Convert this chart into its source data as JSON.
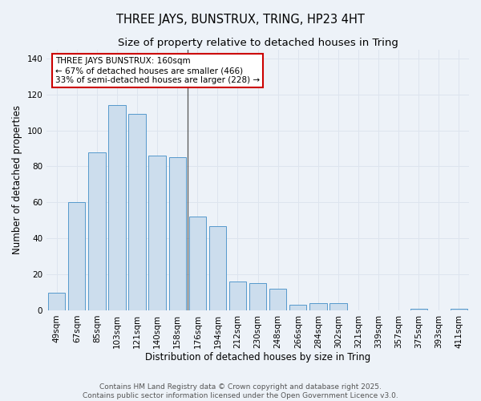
{
  "title": "THREE JAYS, BUNSTRUX, TRING, HP23 4HT",
  "subtitle": "Size of property relative to detached houses in Tring",
  "xlabel": "Distribution of detached houses by size in Tring",
  "ylabel": "Number of detached properties",
  "categories": [
    "49sqm",
    "67sqm",
    "85sqm",
    "103sqm",
    "121sqm",
    "140sqm",
    "158sqm",
    "176sqm",
    "194sqm",
    "212sqm",
    "230sqm",
    "248sqm",
    "266sqm",
    "284sqm",
    "302sqm",
    "321sqm",
    "339sqm",
    "357sqm",
    "375sqm",
    "393sqm",
    "411sqm"
  ],
  "values": [
    10,
    60,
    88,
    114,
    109,
    86,
    85,
    52,
    47,
    16,
    15,
    12,
    3,
    4,
    4,
    0,
    0,
    0,
    1,
    0,
    1
  ],
  "bar_color": "#ccdded",
  "bar_edge_color": "#5599cc",
  "marker_index": 6,
  "marker_line_color": "#555555",
  "annotation_text": "THREE JAYS BUNSTRUX: 160sqm\n← 67% of detached houses are smaller (466)\n33% of semi-detached houses are larger (228) →",
  "annotation_box_facecolor": "#ffffff",
  "annotation_box_edgecolor": "#cc0000",
  "ylim": [
    0,
    145
  ],
  "yticks": [
    0,
    20,
    40,
    60,
    80,
    100,
    120,
    140
  ],
  "grid_color": "#dde4ee",
  "background_color": "#edf2f8",
  "footer_line1": "Contains HM Land Registry data © Crown copyright and database right 2025.",
  "footer_line2": "Contains public sector information licensed under the Open Government Licence v3.0.",
  "title_fontsize": 10.5,
  "subtitle_fontsize": 9.5,
  "axis_label_fontsize": 8.5,
  "tick_fontsize": 7.5,
  "annotation_fontsize": 7.5,
  "footer_fontsize": 6.5
}
